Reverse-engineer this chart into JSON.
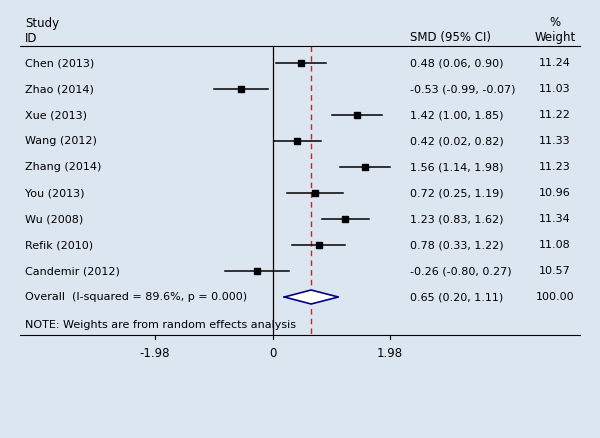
{
  "studies": [
    {
      "label": "Chen (2013)",
      "smd": 0.48,
      "ci_low": 0.06,
      "ci_high": 0.9,
      "weight": "11.24",
      "ci_str": "0.48 (0.06, 0.90)"
    },
    {
      "label": "Zhao (2014)",
      "smd": -0.53,
      "ci_low": -0.99,
      "ci_high": -0.07,
      "weight": "11.03",
      "ci_str": "-0.53 (-0.99, -0.07)"
    },
    {
      "label": "Xue (2013)",
      "smd": 1.42,
      "ci_low": 1.0,
      "ci_high": 1.85,
      "weight": "11.22",
      "ci_str": "1.42 (1.00, 1.85)"
    },
    {
      "label": "Wang (2012)",
      "smd": 0.42,
      "ci_low": 0.02,
      "ci_high": 0.82,
      "weight": "11.33",
      "ci_str": "0.42 (0.02, 0.82)"
    },
    {
      "label": "Zhang (2014)",
      "smd": 1.56,
      "ci_low": 1.14,
      "ci_high": 1.98,
      "weight": "11.23",
      "ci_str": "1.56 (1.14, 1.98)"
    },
    {
      "label": "You (2013)",
      "smd": 0.72,
      "ci_low": 0.25,
      "ci_high": 1.19,
      "weight": "10.96",
      "ci_str": "0.72 (0.25, 1.19)"
    },
    {
      "label": "Wu (2008)",
      "smd": 1.23,
      "ci_low": 0.83,
      "ci_high": 1.62,
      "weight": "11.34",
      "ci_str": "1.23 (0.83, 1.62)"
    },
    {
      "label": "Refik (2010)",
      "smd": 0.78,
      "ci_low": 0.33,
      "ci_high": 1.22,
      "weight": "11.08",
      "ci_str": "0.78 (0.33, 1.22)"
    },
    {
      "label": "Candemir (2012)",
      "smd": -0.26,
      "ci_low": -0.8,
      "ci_high": 0.27,
      "weight": "10.57",
      "ci_str": "-0.26 (-0.80, 0.27)"
    }
  ],
  "overall": {
    "label": "Overall  (I-squared = 89.6%, p = 0.000)",
    "smd": 0.65,
    "ci_low": 0.2,
    "ci_high": 1.11,
    "weight": "100.00",
    "ci_str": "0.65 (0.20, 1.11)"
  },
  "note": "NOTE: Weights are from random effects analysis",
  "x_min": -1.98,
  "x_max": 1.98,
  "x_ticks": [
    -1.98,
    0,
    1.98
  ],
  "dashed_line_x": 0.65,
  "background_color": "#dce6f0",
  "header_study": "Study",
  "header_id": "ID",
  "header_smd": "SMD (95% CI)",
  "header_pct": "%",
  "header_weight": "Weight"
}
